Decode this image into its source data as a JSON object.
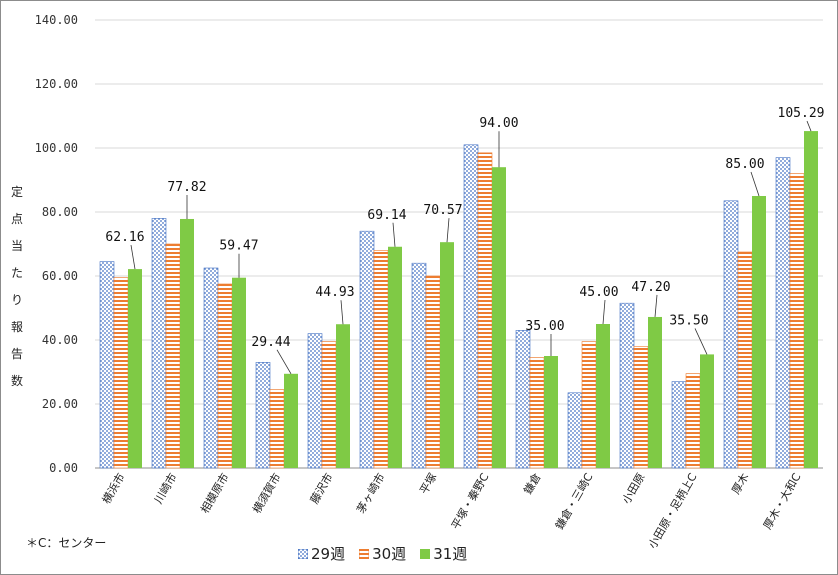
{
  "chart_data": {
    "type": "bar",
    "title": "",
    "ylabel": "定点当たり報告数",
    "xlabel": "",
    "ylim": [
      0,
      140
    ],
    "yticks": [
      "0.00",
      "20.00",
      "40.00",
      "60.00",
      "80.00",
      "100.00",
      "120.00",
      "140.00"
    ],
    "grid": true,
    "legend_position": "bottom",
    "categories": [
      "横浜市",
      "川崎市",
      "相模原市",
      "横須賀市",
      "藤沢市",
      "茅ヶ崎市",
      "平塚",
      "平塚・秦野C",
      "鎌倉",
      "鎌倉・三崎C",
      "小田原",
      "小田原・足柄上C",
      "厚木",
      "厚木・大和C"
    ],
    "series": [
      {
        "name": "29週",
        "values": [
          64.5,
          78.0,
          62.5,
          33.0,
          42.0,
          74.0,
          64.0,
          101.0,
          43.0,
          23.5,
          51.5,
          27.0,
          83.5,
          97.0
        ]
      },
      {
        "name": "30週",
        "values": [
          59.5,
          70.0,
          57.5,
          24.5,
          39.5,
          68.0,
          60.0,
          98.5,
          34.5,
          39.5,
          38.0,
          29.5,
          67.5,
          92.0
        ]
      },
      {
        "name": "31週",
        "values": [
          62.16,
          77.82,
          59.47,
          29.44,
          44.93,
          69.14,
          70.57,
          94.0,
          35.0,
          45.0,
          47.2,
          35.5,
          85.0,
          105.29
        ]
      }
    ],
    "data_labels": [
      "62.16",
      "77.82",
      "59.47",
      "29.44",
      "44.93",
      "69.14",
      "70.57",
      "94.00",
      "35.00",
      "45.00",
      "47.20",
      "35.50",
      "85.00",
      "105.29"
    ],
    "note": "＊C：センター",
    "colors": {
      "s29": "#4472c4",
      "s30": "#ed7d31",
      "s31": "#7fca45",
      "grid": "#d9d9d9",
      "axis": "#8c8c8c"
    }
  }
}
